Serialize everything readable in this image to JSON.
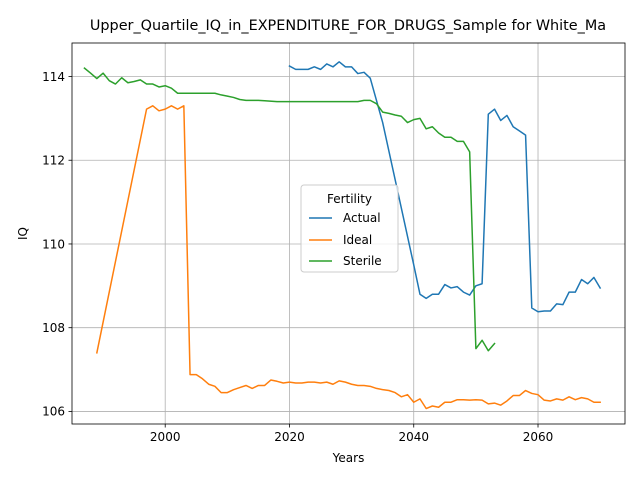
{
  "chart_data": {
    "type": "line",
    "title": "Upper_Quartile_IQ_in_EXPENDITURE_FOR_DRUGS_Sample for White_Ma",
    "xlabel": "Years",
    "ylabel": "IQ",
    "xlim": [
      1985,
      2074
    ],
    "ylim": [
      105.7,
      114.8
    ],
    "xticks": [
      2000,
      2020,
      2040,
      2060
    ],
    "yticks": [
      106,
      108,
      110,
      112,
      114
    ],
    "grid": true,
    "legend": {
      "title": "Fertility",
      "placement": "center"
    },
    "series": [
      {
        "name": "Actual",
        "color": "#1f77b4",
        "points": [
          [
            2020,
            114.25
          ],
          [
            2021,
            114.17
          ],
          [
            2022,
            114.17
          ],
          [
            2023,
            114.17
          ],
          [
            2024,
            114.23
          ],
          [
            2025,
            114.17
          ],
          [
            2026,
            114.3
          ],
          [
            2027,
            114.23
          ],
          [
            2028,
            114.35
          ],
          [
            2029,
            114.23
          ],
          [
            2030,
            114.23
          ],
          [
            2031,
            114.07
          ],
          [
            2032,
            114.1
          ],
          [
            2033,
            113.96
          ],
          [
            2035,
            112.9
          ],
          [
            2040,
            109.5
          ],
          [
            2041,
            108.8
          ],
          [
            2042,
            108.7
          ],
          [
            2043,
            108.8
          ],
          [
            2044,
            108.8
          ],
          [
            2045,
            109.03
          ],
          [
            2046,
            108.95
          ],
          [
            2047,
            108.98
          ],
          [
            2048,
            108.85
          ],
          [
            2049,
            108.78
          ],
          [
            2050,
            109.0
          ],
          [
            2051,
            109.05
          ],
          [
            2052,
            113.1
          ],
          [
            2053,
            113.22
          ],
          [
            2054,
            112.95
          ],
          [
            2055,
            113.07
          ],
          [
            2056,
            112.8
          ],
          [
            2057,
            112.7
          ],
          [
            2058,
            112.6
          ],
          [
            2059,
            108.47
          ],
          [
            2060,
            108.38
          ],
          [
            2061,
            108.4
          ],
          [
            2062,
            108.4
          ],
          [
            2063,
            108.57
          ],
          [
            2064,
            108.55
          ],
          [
            2065,
            108.85
          ],
          [
            2066,
            108.85
          ],
          [
            2067,
            109.15
          ],
          [
            2068,
            109.05
          ],
          [
            2069,
            109.2
          ],
          [
            2070,
            108.95
          ]
        ]
      },
      {
        "name": "Ideal",
        "color": "#ff7f0e",
        "points": [
          [
            1989,
            107.4
          ],
          [
            1997,
            113.22
          ],
          [
            1998,
            113.3
          ],
          [
            1999,
            113.18
          ],
          [
            2000,
            113.22
          ],
          [
            2001,
            113.3
          ],
          [
            2002,
            113.22
          ],
          [
            2003,
            113.3
          ],
          [
            2004,
            106.88
          ],
          [
            2005,
            106.88
          ],
          [
            2006,
            106.78
          ],
          [
            2007,
            106.65
          ],
          [
            2008,
            106.6
          ],
          [
            2009,
            106.45
          ],
          [
            2010,
            106.45
          ],
          [
            2011,
            106.52
          ],
          [
            2012,
            106.57
          ],
          [
            2013,
            106.62
          ],
          [
            2014,
            106.55
          ],
          [
            2015,
            106.62
          ],
          [
            2016,
            106.62
          ],
          [
            2017,
            106.75
          ],
          [
            2018,
            106.72
          ],
          [
            2019,
            106.68
          ],
          [
            2020,
            106.7
          ],
          [
            2021,
            106.68
          ],
          [
            2022,
            106.68
          ],
          [
            2023,
            106.7
          ],
          [
            2024,
            106.7
          ],
          [
            2025,
            106.68
          ],
          [
            2026,
            106.7
          ],
          [
            2027,
            106.65
          ],
          [
            2028,
            106.73
          ],
          [
            2029,
            106.7
          ],
          [
            2030,
            106.65
          ],
          [
            2031,
            106.62
          ],
          [
            2032,
            106.62
          ],
          [
            2033,
            106.6
          ],
          [
            2034,
            106.55
          ],
          [
            2035,
            106.52
          ],
          [
            2036,
            106.5
          ],
          [
            2037,
            106.45
          ],
          [
            2038,
            106.35
          ],
          [
            2039,
            106.4
          ],
          [
            2040,
            106.22
          ],
          [
            2041,
            106.3
          ],
          [
            2042,
            106.07
          ],
          [
            2043,
            106.13
          ],
          [
            2044,
            106.1
          ],
          [
            2045,
            106.22
          ],
          [
            2046,
            106.22
          ],
          [
            2047,
            106.28
          ],
          [
            2048,
            106.28
          ],
          [
            2049,
            106.27
          ],
          [
            2050,
            106.28
          ],
          [
            2051,
            106.27
          ],
          [
            2052,
            106.18
          ],
          [
            2053,
            106.2
          ],
          [
            2054,
            106.15
          ],
          [
            2055,
            106.25
          ],
          [
            2056,
            106.38
          ],
          [
            2057,
            106.38
          ],
          [
            2058,
            106.5
          ],
          [
            2059,
            106.43
          ],
          [
            2060,
            106.4
          ],
          [
            2061,
            106.27
          ],
          [
            2062,
            106.25
          ],
          [
            2063,
            106.3
          ],
          [
            2064,
            106.27
          ],
          [
            2065,
            106.35
          ],
          [
            2066,
            106.28
          ],
          [
            2067,
            106.33
          ],
          [
            2068,
            106.3
          ],
          [
            2069,
            106.22
          ],
          [
            2070,
            106.22
          ]
        ]
      },
      {
        "name": "Sterile",
        "color": "#2ca02c",
        "points": [
          [
            1987,
            114.2
          ],
          [
            1988,
            114.08
          ],
          [
            1989,
            113.95
          ],
          [
            1990,
            114.08
          ],
          [
            1991,
            113.9
          ],
          [
            1992,
            113.82
          ],
          [
            1993,
            113.97
          ],
          [
            1994,
            113.85
          ],
          [
            1995,
            113.88
          ],
          [
            1996,
            113.92
          ],
          [
            1997,
            113.82
          ],
          [
            1998,
            113.82
          ],
          [
            1999,
            113.75
          ],
          [
            2000,
            113.78
          ],
          [
            2001,
            113.72
          ],
          [
            2002,
            113.6
          ],
          [
            2003,
            113.6
          ],
          [
            2005,
            113.6
          ],
          [
            2007,
            113.6
          ],
          [
            2008,
            113.6
          ],
          [
            2009,
            113.56
          ],
          [
            2010,
            113.53
          ],
          [
            2011,
            113.5
          ],
          [
            2012,
            113.45
          ],
          [
            2013,
            113.43
          ],
          [
            2015,
            113.43
          ],
          [
            2016,
            113.42
          ],
          [
            2018,
            113.4
          ],
          [
            2020,
            113.4
          ],
          [
            2022,
            113.4
          ],
          [
            2024,
            113.4
          ],
          [
            2026,
            113.4
          ],
          [
            2028,
            113.4
          ],
          [
            2030,
            113.4
          ],
          [
            2031,
            113.4
          ],
          [
            2032,
            113.43
          ],
          [
            2033,
            113.43
          ],
          [
            2034,
            113.35
          ],
          [
            2035,
            113.15
          ],
          [
            2036,
            113.12
          ],
          [
            2037,
            113.08
          ],
          [
            2038,
            113.05
          ],
          [
            2039,
            112.9
          ],
          [
            2040,
            112.97
          ],
          [
            2041,
            113.0
          ],
          [
            2042,
            112.75
          ],
          [
            2043,
            112.8
          ],
          [
            2044,
            112.65
          ],
          [
            2045,
            112.55
          ],
          [
            2046,
            112.55
          ],
          [
            2047,
            112.45
          ],
          [
            2048,
            112.45
          ],
          [
            2049,
            112.2
          ],
          [
            2050,
            107.5
          ],
          [
            2051,
            107.7
          ],
          [
            2052,
            107.45
          ],
          [
            2053,
            107.62
          ]
        ]
      }
    ]
  }
}
